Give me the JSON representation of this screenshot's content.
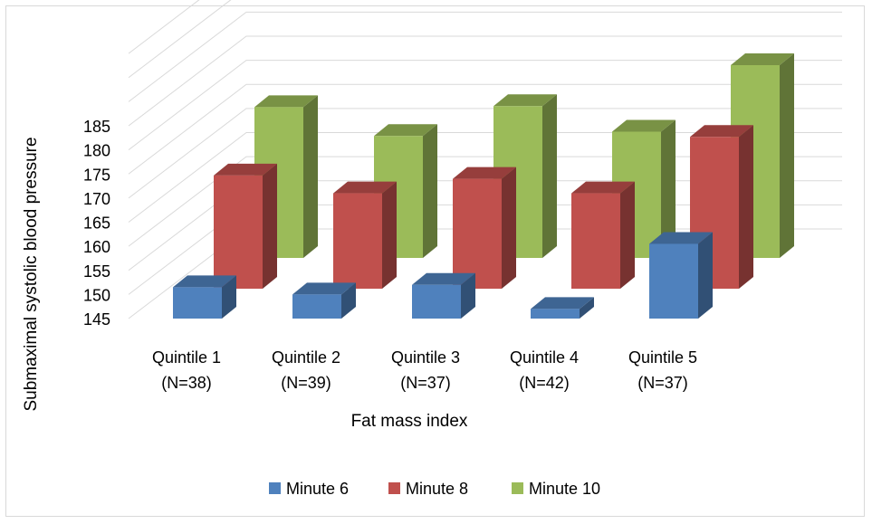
{
  "chart_data": {
    "type": "bar",
    "title": "",
    "xlabel": "Fat mass index",
    "ylabel": "Submaximal systolic blood pressure",
    "ylim": [
      145,
      185
    ],
    "y_ticks": [
      "145",
      "150",
      "155",
      "160",
      "165",
      "170",
      "175",
      "180",
      "185"
    ],
    "categories": [
      {
        "line1": "Quintile 1",
        "line2": "(N=38)"
      },
      {
        "line1": "Quintile 2",
        "line2": "(N=39)"
      },
      {
        "line1": "Quintile 3",
        "line2": "(N=37)"
      },
      {
        "line1": "Quintile 4",
        "line2": "(N=42)"
      },
      {
        "line1": "Quintile 5",
        "line2": "(N=37)"
      }
    ],
    "series": [
      {
        "name": "Minute 6",
        "color": "#4f81bd",
        "values": [
          151.5,
          150,
          152,
          147,
          160.5
        ]
      },
      {
        "name": "Minute 8",
        "color": "#c0504d",
        "values": [
          168.5,
          164.8,
          167.8,
          164.8,
          176.5
        ]
      },
      {
        "name": "Minute 10",
        "color": "#9bbb59",
        "values": [
          176.3,
          170.3,
          176.5,
          171.2,
          185
        ]
      }
    ],
    "legend_position": "bottom",
    "gridlines": true,
    "style": "3d-clustered-column"
  }
}
